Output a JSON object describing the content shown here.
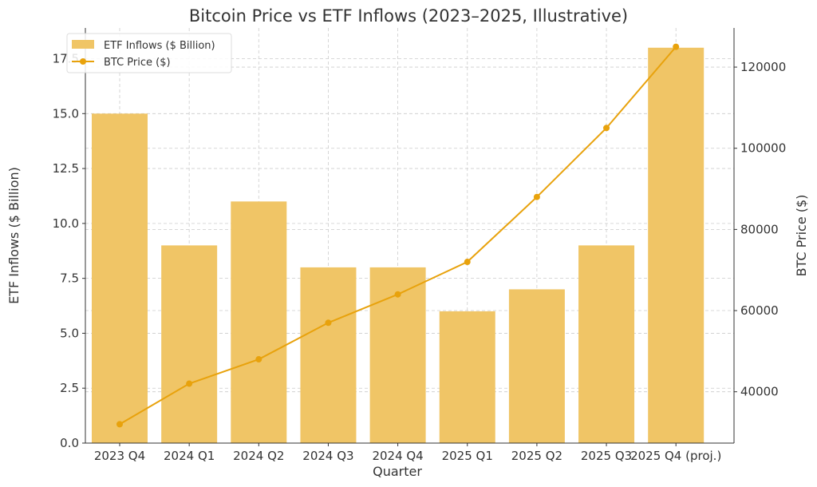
{
  "chart_data": {
    "type": "bar+line",
    "title": "Bitcoin Price vs ETF Inflows (2023–2025, Illustrative)",
    "xlabel": "Quarter",
    "ylabel": "ETF Inflows ($ Billion)",
    "y2label": "BTC Price ($)",
    "categories": [
      "2023 Q4",
      "2024 Q1",
      "2024 Q2",
      "2024 Q3",
      "2024 Q4",
      "2025 Q1",
      "2025 Q2",
      "2025 Q3",
      "2025 Q4 (proj.)"
    ],
    "series": [
      {
        "name": "ETF Inflows ($ Billion)",
        "type": "bar",
        "axis": "left",
        "color": "#f0c566",
        "values": [
          15,
          9,
          11,
          8,
          8,
          6,
          7,
          9,
          18
        ]
      },
      {
        "name": "BTC Price ($)",
        "type": "line",
        "axis": "right",
        "color": "#e8a20c",
        "values": [
          32000,
          42000,
          48000,
          57000,
          64000,
          72000,
          88000,
          105000,
          125000
        ]
      }
    ],
    "ylim": [
      0,
      18.9
    ],
    "y2lim": [
      27350,
      129650
    ],
    "yticks": [
      "0.0",
      "2.5",
      "5.0",
      "7.5",
      "10.0",
      "12.5",
      "15.0",
      "17.5"
    ],
    "y2ticks": [
      "40000",
      "60000",
      "80000",
      "100000",
      "120000"
    ],
    "grid": true,
    "legend": "top-left"
  }
}
